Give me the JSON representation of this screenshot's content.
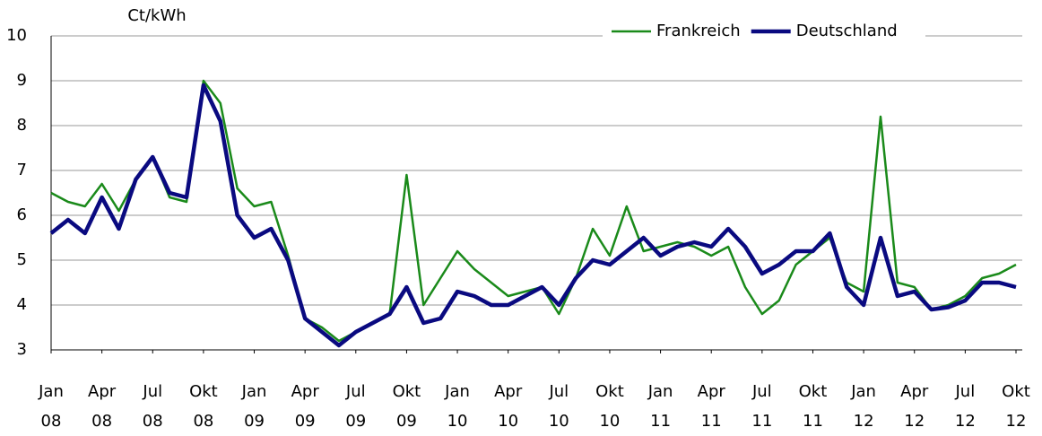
{
  "chart_data": {
    "type": "line",
    "y_axis_label": "Ct/kWh",
    "x": [
      "2008-01",
      "2008-02",
      "2008-03",
      "2008-04",
      "2008-05",
      "2008-06",
      "2008-07",
      "2008-08",
      "2008-09",
      "2008-10",
      "2008-11",
      "2008-12",
      "2009-01",
      "2009-02",
      "2009-03",
      "2009-04",
      "2009-05",
      "2009-06",
      "2009-07",
      "2009-08",
      "2009-09",
      "2009-10",
      "2009-11",
      "2009-12",
      "2010-01",
      "2010-02",
      "2010-03",
      "2010-04",
      "2010-05",
      "2010-06",
      "2010-07",
      "2010-08",
      "2010-09",
      "2010-10",
      "2010-11",
      "2010-12",
      "2011-01",
      "2011-02",
      "2011-03",
      "2011-04",
      "2011-05",
      "2011-06",
      "2011-07",
      "2011-08",
      "2011-09",
      "2011-10",
      "2011-11",
      "2011-12",
      "2012-01",
      "2012-02",
      "2012-03",
      "2012-04",
      "2012-05",
      "2012-06",
      "2012-07",
      "2012-08",
      "2012-09",
      "2012-10"
    ],
    "series": [
      {
        "name": "Frankreich",
        "color": "#1a8a1a",
        "width": 2.5,
        "values": [
          6.5,
          6.3,
          6.2,
          6.7,
          6.1,
          6.8,
          7.3,
          6.4,
          6.3,
          9.0,
          8.5,
          6.6,
          6.2,
          6.3,
          5.1,
          3.7,
          3.5,
          3.2,
          3.4,
          3.6,
          3.8,
          6.9,
          4.0,
          4.6,
          5.2,
          4.8,
          4.5,
          4.2,
          4.3,
          4.4,
          3.8,
          4.6,
          5.7,
          5.1,
          6.2,
          5.2,
          5.3,
          5.4,
          5.3,
          5.1,
          5.3,
          4.4,
          3.8,
          4.1,
          4.9,
          5.2,
          5.5,
          4.5,
          4.3,
          8.2,
          4.5,
          4.4,
          3.9,
          4.0,
          4.2,
          4.6,
          4.7,
          4.9
        ]
      },
      {
        "name": "Deutschland",
        "color": "#0a0a80",
        "width": 4.5,
        "values": [
          5.6,
          5.9,
          5.6,
          6.4,
          5.7,
          6.8,
          7.3,
          6.5,
          6.4,
          8.9,
          8.1,
          6.0,
          5.5,
          5.7,
          5.0,
          3.7,
          3.4,
          3.1,
          3.4,
          3.6,
          3.8,
          4.4,
          3.6,
          3.7,
          4.3,
          4.2,
          4.0,
          4.0,
          4.2,
          4.4,
          4.0,
          4.6,
          5.0,
          4.9,
          5.2,
          5.5,
          5.1,
          5.3,
          5.4,
          5.3,
          5.7,
          5.3,
          4.7,
          4.9,
          5.2,
          5.2,
          5.6,
          4.4,
          4.0,
          5.5,
          4.2,
          4.3,
          3.9,
          3.95,
          4.1,
          4.5,
          4.5,
          4.4
        ]
      }
    ],
    "ylim": [
      3,
      10
    ],
    "yticks": [
      3,
      4,
      5,
      6,
      7,
      8,
      9,
      10
    ],
    "grid": true,
    "legend": "top-right",
    "xticks": [
      {
        "value": "2008-01",
        "label": [
          "Jan",
          "08"
        ]
      },
      {
        "value": "2008-04",
        "label": [
          "Apr",
          "08"
        ]
      },
      {
        "value": "2008-07",
        "label": [
          "Jul",
          "08"
        ]
      },
      {
        "value": "2008-10",
        "label": [
          "Okt",
          "08"
        ]
      },
      {
        "value": "2009-01",
        "label": [
          "Jan",
          "09"
        ]
      },
      {
        "value": "2009-04",
        "label": [
          "Apr",
          "09"
        ]
      },
      {
        "value": "2009-07",
        "label": [
          "Jul",
          "09"
        ]
      },
      {
        "value": "2009-10",
        "label": [
          "Okt",
          "09"
        ]
      },
      {
        "value": "2010-01",
        "label": [
          "Jan",
          "10"
        ]
      },
      {
        "value": "2010-04",
        "label": [
          "Apr",
          "10"
        ]
      },
      {
        "value": "2010-07",
        "label": [
          "Jul",
          "10"
        ]
      },
      {
        "value": "2010-10",
        "label": [
          "Okt",
          "10"
        ]
      },
      {
        "value": "2011-01",
        "label": [
          "Jan",
          "11"
        ]
      },
      {
        "value": "2011-04",
        "label": [
          "Apr",
          "11"
        ]
      },
      {
        "value": "2011-07",
        "label": [
          "Jul",
          "11"
        ]
      },
      {
        "value": "2011-10",
        "label": [
          "Okt",
          "11"
        ]
      },
      {
        "value": "2012-01",
        "label": [
          "Jan",
          "12"
        ]
      },
      {
        "value": "2012-04",
        "label": [
          "Apr",
          "12"
        ]
      },
      {
        "value": "2012-07",
        "label": [
          "Jul",
          "12"
        ]
      },
      {
        "value": "2012-10",
        "label": [
          "Okt",
          "12"
        ]
      }
    ]
  }
}
